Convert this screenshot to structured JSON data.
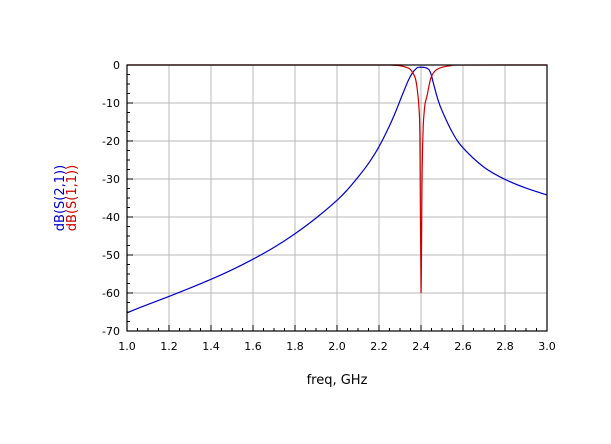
{
  "chart_data": {
    "type": "line",
    "xlabel": "freq, GHz",
    "ylabel_lines": [
      {
        "text": "dB(S(2,1))",
        "color": "#0000cc"
      },
      {
        "text": "dB(S(1,1))",
        "color": "#cc0000"
      }
    ],
    "xlim": [
      1.0,
      3.0
    ],
    "ylim": [
      -70,
      0
    ],
    "x_ticks": [
      "1.0",
      "1.2",
      "1.4",
      "1.6",
      "1.8",
      "2.0",
      "2.2",
      "2.4",
      "2.6",
      "2.8",
      "3.0"
    ],
    "y_ticks": [
      "0",
      "-10",
      "-20",
      "-30",
      "-40",
      "-50",
      "-60",
      "-70"
    ],
    "grid": true,
    "series": [
      {
        "name": "dB(S(2,1))",
        "color": "#0000cc",
        "x": [
          1.0,
          1.1,
          1.2,
          1.3,
          1.4,
          1.5,
          1.6,
          1.7,
          1.8,
          1.9,
          2.0,
          2.05,
          2.1,
          2.15,
          2.2,
          2.25,
          2.28,
          2.31,
          2.34,
          2.36,
          2.38,
          2.39,
          2.4,
          2.41,
          2.42,
          2.43,
          2.44,
          2.45,
          2.46,
          2.48,
          2.5,
          2.55,
          2.6,
          2.7,
          2.8,
          2.9,
          3.0
        ],
        "y": [
          -65.2,
          -63.0,
          -60.9,
          -58.7,
          -56.4,
          -53.9,
          -51.1,
          -48.0,
          -44.4,
          -40.3,
          -35.6,
          -32.8,
          -29.5,
          -25.9,
          -21.5,
          -16.0,
          -12.2,
          -8.0,
          -4.0,
          -2.0,
          -0.8,
          -0.6,
          -0.6,
          -0.6,
          -0.7,
          -0.9,
          -1.4,
          -2.8,
          -5.0,
          -9.0,
          -12.0,
          -17.8,
          -21.8,
          -26.9,
          -30.1,
          -32.4,
          -34.2
        ]
      },
      {
        "name": "dB(S(1,1))",
        "color": "#cc0000",
        "x": [
          1.0,
          2.2,
          2.26,
          2.3,
          2.33,
          2.35,
          2.37,
          2.38,
          2.39,
          2.395,
          2.4,
          2.405,
          2.41,
          2.415,
          2.42,
          2.43,
          2.44,
          2.45,
          2.47,
          2.5,
          2.54,
          2.58,
          3.0
        ],
        "y": [
          0,
          0,
          -0.05,
          -0.2,
          -0.6,
          -1.2,
          -3.0,
          -5.5,
          -11.0,
          -20.0,
          -59.8,
          -30.0,
          -17.0,
          -12.5,
          -10.0,
          -7.8,
          -5.0,
          -3.0,
          -1.4,
          -0.6,
          -0.2,
          -0.02,
          0
        ]
      }
    ]
  }
}
